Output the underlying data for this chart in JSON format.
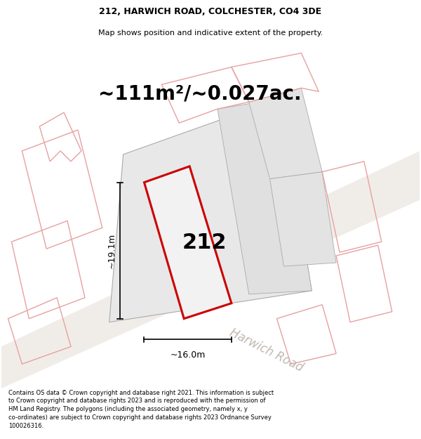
{
  "title": "212, HARWICH ROAD, COLCHESTER, CO4 3DE",
  "subtitle": "Map shows position and indicative extent of the property.",
  "area_text": "~111m²/~0.027ac.",
  "label_212": "212",
  "dim_width": "~16.0m",
  "dim_height": "~19.1m",
  "road_label": "Harwich Road",
  "footer": "Contains OS data © Crown copyright and database right 2021. This information is subject to Crown copyright and database rights 2023 and is reproduced with the permission of HM Land Registry. The polygons (including the associated geometry, namely x, y co-ordinates) are subject to Crown copyright and database rights 2023 Ordnance Survey 100026316.",
  "plot_bg": "#ffffff",
  "red_color": "#cc0000",
  "light_red": "#e8a0a0",
  "parcel_fill": "#e8e8e8",
  "parcel_edge": "#aaaaaa",
  "title_fontsize": 9,
  "subtitle_fontsize": 8,
  "area_fontsize": 20,
  "label_fontsize": 22,
  "dim_fontsize": 9,
  "road_fontsize": 12,
  "footer_fontsize": 6
}
